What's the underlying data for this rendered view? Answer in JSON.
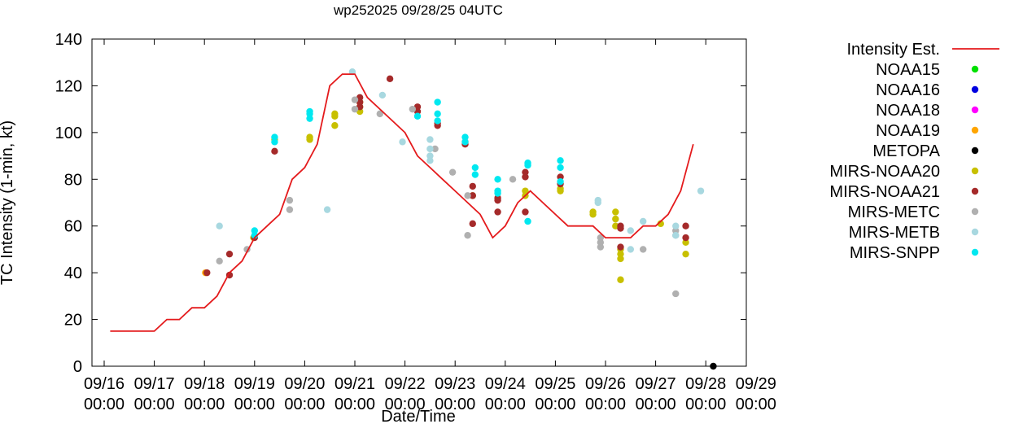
{
  "chart_data": {
    "type": "scatter",
    "title": "wp252025 09/28/25 04UTC",
    "xlabel": "Date/Time",
    "ylabel": "TC Intensity (1-min, kt)",
    "ylim": [
      0,
      140
    ],
    "yticks": [
      0,
      20,
      40,
      60,
      80,
      100,
      120,
      140
    ],
    "xlim": [
      0,
      13
    ],
    "xticks": [
      {
        "x": 0,
        "label": [
          "09/16",
          "00:00"
        ]
      },
      {
        "x": 1,
        "label": [
          "09/17",
          "00:00"
        ]
      },
      {
        "x": 2,
        "label": [
          "09/18",
          "00:00"
        ]
      },
      {
        "x": 3,
        "label": [
          "09/19",
          "00:00"
        ]
      },
      {
        "x": 4,
        "label": [
          "09/20",
          "00:00"
        ]
      },
      {
        "x": 5,
        "label": [
          "09/21",
          "00:00"
        ]
      },
      {
        "x": 6,
        "label": [
          "09/22",
          "00:00"
        ]
      },
      {
        "x": 7,
        "label": [
          "09/23",
          "00:00"
        ]
      },
      {
        "x": 8,
        "label": [
          "09/24",
          "00:00"
        ]
      },
      {
        "x": 9,
        "label": [
          "09/25",
          "00:00"
        ]
      },
      {
        "x": 10,
        "label": [
          "09/26",
          "00:00"
        ]
      },
      {
        "x": 11,
        "label": [
          "09/27",
          "00:00"
        ]
      },
      {
        "x": 12,
        "label": [
          "09/28",
          "00:00"
        ]
      },
      {
        "x": 13,
        "label": [
          "09/29",
          "00:00"
        ]
      }
    ],
    "grid": false,
    "legend_position": "outside-right",
    "intensity_line": {
      "name": "Intensity Est.",
      "color": "#e41a1c",
      "points": [
        [
          0.12,
          15
        ],
        [
          1.0,
          15
        ],
        [
          1.25,
          20
        ],
        [
          1.5,
          20
        ],
        [
          1.75,
          25
        ],
        [
          2.0,
          25
        ],
        [
          2.25,
          30
        ],
        [
          2.5,
          40
        ],
        [
          2.75,
          45
        ],
        [
          3.0,
          55
        ],
        [
          3.25,
          60
        ],
        [
          3.5,
          65
        ],
        [
          3.75,
          80
        ],
        [
          4.0,
          85
        ],
        [
          4.25,
          95
        ],
        [
          4.5,
          120
        ],
        [
          4.75,
          125
        ],
        [
          5.0,
          125
        ],
        [
          5.25,
          115
        ],
        [
          5.5,
          110
        ],
        [
          5.75,
          105
        ],
        [
          6.0,
          100
        ],
        [
          6.25,
          90
        ],
        [
          6.5,
          85
        ],
        [
          6.75,
          80
        ],
        [
          7.0,
          75
        ],
        [
          7.25,
          70
        ],
        [
          7.5,
          65
        ],
        [
          7.75,
          55
        ],
        [
          8.0,
          60
        ],
        [
          8.25,
          70
        ],
        [
          8.5,
          75
        ],
        [
          8.75,
          70
        ],
        [
          9.0,
          65
        ],
        [
          9.25,
          60
        ],
        [
          9.5,
          60
        ],
        [
          9.75,
          60
        ],
        [
          10.0,
          55
        ],
        [
          10.25,
          55
        ],
        [
          10.5,
          55
        ],
        [
          10.75,
          60
        ],
        [
          11.0,
          60
        ],
        [
          11.25,
          65
        ],
        [
          11.5,
          75
        ],
        [
          11.75,
          95
        ]
      ]
    },
    "series": [
      {
        "name": "NOAA15",
        "color": "#00e000",
        "points": []
      },
      {
        "name": "NOAA16",
        "color": "#0000e0",
        "points": []
      },
      {
        "name": "NOAA18",
        "color": "#ff00ff",
        "points": []
      },
      {
        "name": "NOAA19",
        "color": "#ffa500",
        "points": [
          [
            2.02,
            40
          ]
        ]
      },
      {
        "name": "METOPA",
        "color": "#000000",
        "points": [
          [
            12.15,
            0
          ]
        ]
      },
      {
        "name": "MIRS-NOAA20",
        "color": "#c8c000",
        "points": [
          [
            2.98,
            55
          ],
          [
            3.4,
            97
          ],
          [
            4.1,
            97
          ],
          [
            4.1,
            98
          ],
          [
            4.6,
            103
          ],
          [
            4.6,
            107
          ],
          [
            4.6,
            108
          ],
          [
            5.1,
            109
          ],
          [
            5.1,
            111
          ],
          [
            5.1,
            113
          ],
          [
            7.35,
            73
          ],
          [
            8.4,
            73
          ],
          [
            8.4,
            75
          ],
          [
            9.1,
            75
          ],
          [
            9.1,
            76
          ],
          [
            9.75,
            65
          ],
          [
            9.75,
            66
          ],
          [
            10.3,
            37
          ],
          [
            10.3,
            46
          ],
          [
            10.3,
            50
          ],
          [
            10.2,
            60
          ],
          [
            10.2,
            63
          ],
          [
            10.2,
            66
          ],
          [
            10.3,
            48
          ],
          [
            11.1,
            61
          ],
          [
            11.6,
            48
          ],
          [
            11.6,
            53
          ]
        ]
      },
      {
        "name": "MIRS-NOAA21",
        "color": "#a52a2a",
        "points": [
          [
            2.05,
            40
          ],
          [
            2.5,
            39
          ],
          [
            2.5,
            48
          ],
          [
            3.0,
            55
          ],
          [
            3.4,
            92
          ],
          [
            5.1,
            111
          ],
          [
            5.1,
            113
          ],
          [
            5.1,
            115
          ],
          [
            5.7,
            123
          ],
          [
            6.25,
            109
          ],
          [
            6.25,
            111
          ],
          [
            6.65,
            103
          ],
          [
            6.65,
            104
          ],
          [
            7.2,
            95
          ],
          [
            7.2,
            96
          ],
          [
            7.35,
            61
          ],
          [
            7.35,
            73
          ],
          [
            7.35,
            77
          ],
          [
            7.85,
            66
          ],
          [
            7.85,
            71
          ],
          [
            7.85,
            72
          ],
          [
            8.4,
            66
          ],
          [
            8.4,
            81
          ],
          [
            8.4,
            83
          ],
          [
            9.1,
            78
          ],
          [
            9.1,
            81
          ],
          [
            10.3,
            51
          ],
          [
            10.3,
            59
          ],
          [
            10.3,
            60
          ],
          [
            11.6,
            55
          ],
          [
            11.6,
            60
          ]
        ]
      },
      {
        "name": "MIRS-METC",
        "color": "#b0b0b0",
        "points": [
          [
            2.3,
            45
          ],
          [
            2.85,
            50
          ],
          [
            3.7,
            67
          ],
          [
            3.7,
            71
          ],
          [
            5.0,
            110
          ],
          [
            5.0,
            114
          ],
          [
            5.5,
            108
          ],
          [
            6.15,
            110
          ],
          [
            6.6,
            93
          ],
          [
            6.95,
            83
          ],
          [
            7.25,
            56
          ],
          [
            7.25,
            73
          ],
          [
            8.15,
            80
          ],
          [
            9.9,
            51
          ],
          [
            9.9,
            53
          ],
          [
            9.9,
            55
          ],
          [
            10.75,
            50
          ],
          [
            11.4,
            31
          ],
          [
            11.4,
            56
          ],
          [
            11.4,
            58
          ]
        ]
      },
      {
        "name": "MIRS-METB",
        "color": "#a8d8e0",
        "points": [
          [
            2.3,
            60
          ],
          [
            4.45,
            67
          ],
          [
            4.95,
            126
          ],
          [
            5.55,
            116
          ],
          [
            5.95,
            96
          ],
          [
            6.5,
            88
          ],
          [
            6.5,
            90
          ],
          [
            6.5,
            93
          ],
          [
            6.5,
            97
          ],
          [
            9.85,
            70
          ],
          [
            9.85,
            71
          ],
          [
            10.5,
            50
          ],
          [
            10.5,
            58
          ],
          [
            10.75,
            62
          ],
          [
            11.4,
            56
          ],
          [
            11.4,
            60
          ],
          [
            11.9,
            75
          ]
        ]
      },
      {
        "name": "MIRS-SNPP",
        "color": "#00e8f0",
        "points": [
          [
            3.0,
            56
          ],
          [
            3.0,
            58
          ],
          [
            3.4,
            96
          ],
          [
            3.4,
            98
          ],
          [
            4.1,
            106
          ],
          [
            4.1,
            108
          ],
          [
            4.1,
            109
          ],
          [
            6.25,
            107
          ],
          [
            6.65,
            105
          ],
          [
            6.65,
            108
          ],
          [
            6.65,
            113
          ],
          [
            7.2,
            96
          ],
          [
            7.2,
            98
          ],
          [
            7.4,
            82
          ],
          [
            7.4,
            85
          ],
          [
            7.85,
            74
          ],
          [
            7.85,
            75
          ],
          [
            7.85,
            80
          ],
          [
            8.45,
            62
          ],
          [
            8.45,
            86
          ],
          [
            8.45,
            87
          ],
          [
            9.1,
            79
          ],
          [
            9.1,
            85
          ],
          [
            9.1,
            88
          ]
        ]
      }
    ]
  }
}
